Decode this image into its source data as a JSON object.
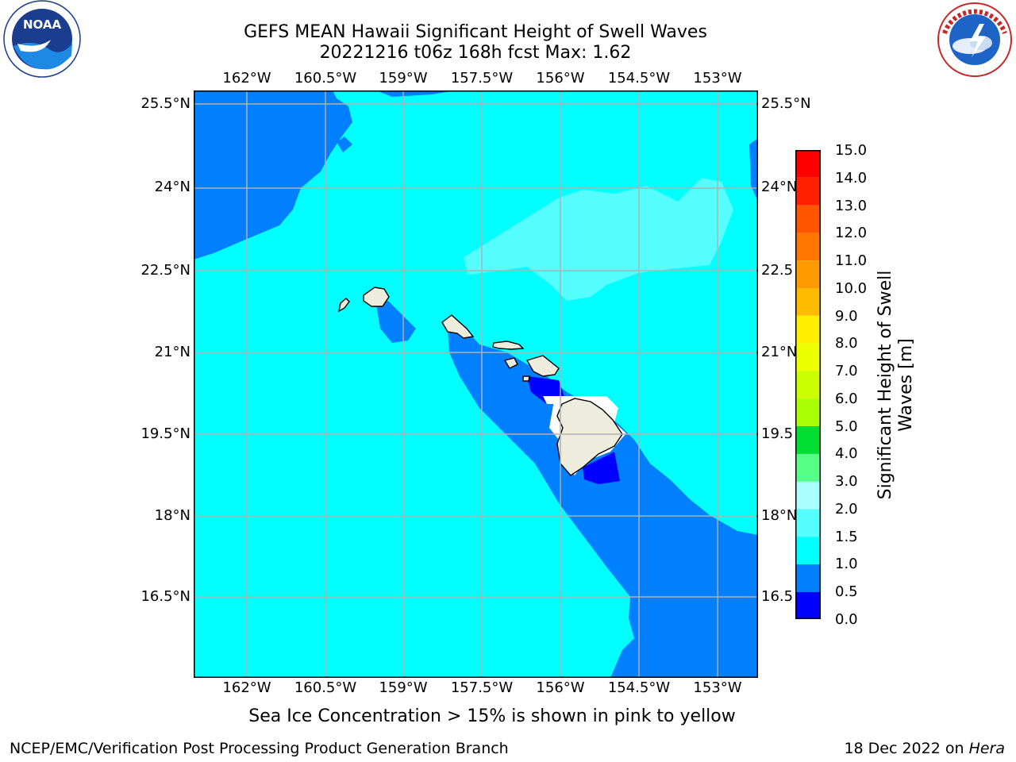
{
  "header": {
    "title_line1": "GEFS MEAN Hawaii Significant Height of Swell Waves",
    "title_line2": "20221216 t06z 168h fcst   Max: 1.62"
  },
  "logos": {
    "left": {
      "icon": "noaa-logo",
      "text": "NOAA",
      "ring_text": "NATIONAL OCEANIC AND ATMOSPHERIC ADMINISTRATION · U.S. DEPARTMENT OF COMMERCE"
    },
    "right": {
      "icon": "nws-logo",
      "ring_text": "NATIONAL WEATHER SERVICE"
    }
  },
  "map": {
    "lon_labels": [
      "162°W",
      "160.5°W",
      "159°W",
      "157.5°W",
      "156°W",
      "154.5°W",
      "153°W"
    ],
    "lat_labels": [
      "25.5°N",
      "24°N",
      "22.5°N",
      "21°N",
      "19.5°N",
      "18°N",
      "16.5°N"
    ],
    "right_lat_labels": [
      "25.5°N",
      "24°N",
      "22.5",
      "21°N",
      "19.5",
      "18°N",
      "16.5"
    ],
    "colors": {
      "ocean_light": "#00ffff",
      "ocean_mid": "#0080ff",
      "ocean_low": "#0000ff",
      "ocean_high": "#55ffff",
      "land": "#eeeddd",
      "grid": "#b0b0b0"
    }
  },
  "colorbar": {
    "label": "Significant Height of Swell Waves [m]",
    "label_line1": "Significant Height of Swell",
    "label_line2": "Waves [m]",
    "ticks": [
      "15.0",
      "14.0",
      "13.0",
      "12.0",
      "11.0",
      "10.0",
      "9.0",
      "8.0",
      "7.0",
      "6.0",
      "5.0",
      "4.0",
      "3.0",
      "2.0",
      "1.5",
      "1.0",
      "0.5",
      "0.0"
    ],
    "colors_top_to_bottom": [
      "#ff0000",
      "#ff2000",
      "#ff5500",
      "#ff7700",
      "#ff9900",
      "#ffbb00",
      "#ffee00",
      "#eeff00",
      "#ccff00",
      "#aaff00",
      "#66ff00",
      "#22ee00",
      "#00dd33",
      "#55ff88",
      "#aaffff",
      "#55ffff",
      "#00ffff",
      "#0080ff",
      "#0000ff"
    ]
  },
  "notes": {
    "sea_ice": "Sea Ice Concentration > 15% is shown in pink to yellow"
  },
  "footer": {
    "left": "NCEP/EMC/Verification Post Processing Product Generation Branch",
    "right_prefix": "18 Dec 2022 on ",
    "right_machine": "Hera"
  }
}
